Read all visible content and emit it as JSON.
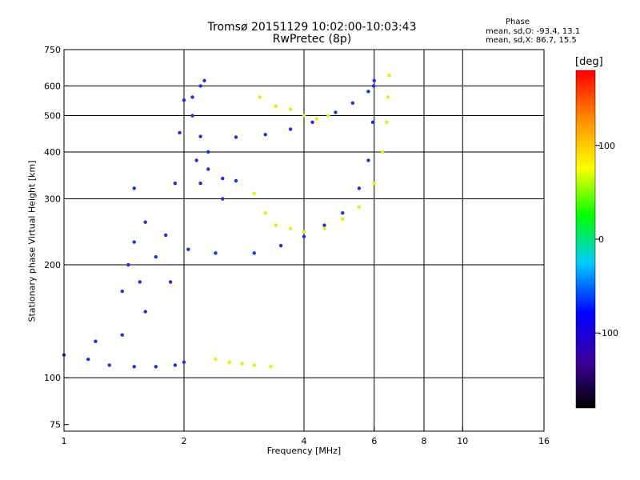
{
  "chart_data": {
    "type": "scatter",
    "title": "Tromsø 20151129 10:02:00-10:03:43",
    "subtitle": "RwPretec (8p)",
    "stats": {
      "heading": "Phase",
      "line1": "mean, sd,O: -93.4, 13.1",
      "line2": "mean, sd,X: 86.7, 15.5"
    },
    "xlabel": "Frequency [MHz]",
    "ylabel": "Stationary phase Virtual Height [km]",
    "xscale": "log",
    "yscale": "log",
    "xlim": [
      1,
      16
    ],
    "ylim": [
      72,
      750
    ],
    "xticks": [
      1,
      2,
      4,
      6,
      8,
      10,
      16
    ],
    "yticks": [
      75,
      100,
      200,
      300,
      400,
      500,
      600,
      750
    ],
    "grid": true,
    "colorbar": {
      "label": "[deg]",
      "range": [
        -180,
        180
      ],
      "ticks": [
        100,
        0,
        -100
      ],
      "colormap": "rainbow",
      "colors": [
        "#000000",
        "#3d00a0",
        "#0000ff",
        "#00ccff",
        "#00ff00",
        "#ffff00",
        "#ff8800",
        "#ff0000"
      ]
    },
    "series": [
      {
        "color": "#1e2ee8",
        "points": [
          [
            1.0,
            115
          ],
          [
            1.15,
            112
          ],
          [
            1.3,
            108
          ],
          [
            1.5,
            107
          ],
          [
            1.7,
            107
          ],
          [
            1.9,
            108
          ],
          [
            2.0,
            110
          ],
          [
            1.2,
            125
          ],
          [
            1.4,
            130
          ],
          [
            1.6,
            150
          ],
          [
            1.45,
            200
          ],
          [
            1.5,
            230
          ],
          [
            1.55,
            180
          ],
          [
            1.6,
            260
          ],
          [
            1.5,
            320
          ],
          [
            1.8,
            240
          ],
          [
            1.9,
            330
          ],
          [
            1.95,
            450
          ],
          [
            2.0,
            550
          ],
          [
            1.85,
            180
          ],
          [
            1.7,
            210
          ],
          [
            1.4,
            170
          ]
        ]
      },
      {
        "color": "#1e2ee8",
        "points": [
          [
            2.05,
            220
          ],
          [
            2.4,
            215
          ],
          [
            3.0,
            215
          ],
          [
            3.5,
            225
          ],
          [
            4.0,
            238
          ],
          [
            4.5,
            255
          ],
          [
            5.0,
            275
          ],
          [
            5.5,
            320
          ],
          [
            5.8,
            380
          ],
          [
            5.95,
            480
          ],
          [
            5.98,
            600
          ]
        ]
      },
      {
        "color": "#1e2ee8",
        "points": [
          [
            2.2,
            440
          ],
          [
            2.7,
            438
          ],
          [
            3.2,
            445
          ],
          [
            3.7,
            460
          ],
          [
            4.2,
            480
          ],
          [
            4.8,
            510
          ],
          [
            5.3,
            540
          ],
          [
            5.8,
            580
          ],
          [
            6.0,
            620
          ]
        ]
      },
      {
        "color": "#1e2ee8",
        "points": [
          [
            2.1,
            560
          ],
          [
            2.2,
            600
          ],
          [
            2.25,
            620
          ],
          [
            2.1,
            500
          ],
          [
            2.15,
            380
          ],
          [
            2.2,
            330
          ],
          [
            2.3,
            360
          ],
          [
            2.5,
            340
          ],
          [
            2.7,
            335
          ],
          [
            2.3,
            400
          ],
          [
            2.5,
            300
          ]
        ]
      },
      {
        "color": "#e6ee10",
        "points": [
          [
            3.0,
            310
          ],
          [
            3.2,
            275
          ],
          [
            3.4,
            255
          ],
          [
            3.7,
            250
          ],
          [
            4.0,
            245
          ],
          [
            4.5,
            250
          ],
          [
            5.0,
            265
          ],
          [
            5.5,
            285
          ],
          [
            6.0,
            330
          ],
          [
            6.3,
            400
          ],
          [
            6.45,
            480
          ],
          [
            6.5,
            560
          ],
          [
            6.55,
            640
          ]
        ]
      },
      {
        "color": "#e6ee10",
        "points": [
          [
            3.1,
            560
          ],
          [
            3.4,
            530
          ],
          [
            3.7,
            520
          ],
          [
            4.0,
            500
          ],
          [
            4.3,
            490
          ],
          [
            4.6,
            500
          ]
        ]
      },
      {
        "color": "#e6ee10",
        "points": [
          [
            2.4,
            112
          ],
          [
            2.6,
            110
          ],
          [
            2.8,
            109
          ],
          [
            3.0,
            108
          ],
          [
            3.3,
            107
          ]
        ]
      }
    ]
  }
}
